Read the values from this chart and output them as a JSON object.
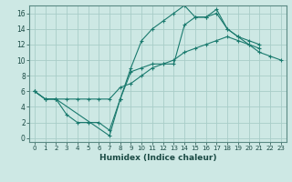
{
  "xlabel": "Humidex (Indice chaleur)",
  "background_color": "#cde8e4",
  "grid_color": "#a8cdc8",
  "line_color": "#1a7a6e",
  "xlim": [
    -0.5,
    23.5
  ],
  "ylim": [
    -0.5,
    17.0
  ],
  "xticks": [
    0,
    1,
    2,
    3,
    4,
    5,
    6,
    7,
    8,
    9,
    10,
    11,
    12,
    13,
    14,
    15,
    16,
    17,
    18,
    19,
    20,
    21,
    22,
    23
  ],
  "yticks": [
    0,
    2,
    4,
    6,
    8,
    10,
    12,
    14,
    16
  ],
  "line1_x": [
    0,
    1,
    2,
    3,
    4,
    5,
    6,
    7,
    8,
    9,
    10,
    11,
    12,
    13,
    14,
    15,
    16,
    17,
    18,
    19,
    20,
    21
  ],
  "line1_y": [
    6,
    5,
    5,
    3,
    2,
    2,
    2,
    1,
    5,
    9,
    12.5,
    14,
    15,
    16,
    17,
    15.5,
    15.5,
    16,
    14,
    13,
    12,
    11.5
  ],
  "line2_x": [
    0,
    1,
    2,
    3,
    4,
    5,
    6,
    7,
    8,
    9,
    10,
    11,
    12,
    13,
    14,
    15,
    16,
    17,
    18,
    19,
    20,
    21,
    22,
    23
  ],
  "line2_y": [
    6,
    5,
    5,
    5,
    5,
    5,
    5,
    5,
    6.5,
    7,
    8,
    9,
    9.5,
    10,
    11,
    11.5,
    12,
    12.5,
    13,
    12.5,
    12,
    11,
    10.5,
    10
  ],
  "line3_x": [
    0,
    1,
    2,
    7,
    8,
    9,
    10,
    11,
    12,
    13,
    14,
    15,
    16,
    17,
    18,
    19,
    20,
    21
  ],
  "line3_y": [
    6,
    5,
    5,
    0.3,
    5,
    8.5,
    9,
    9.5,
    9.5,
    9.5,
    14.5,
    15.5,
    15.5,
    16.5,
    14,
    13,
    12.5,
    12
  ]
}
